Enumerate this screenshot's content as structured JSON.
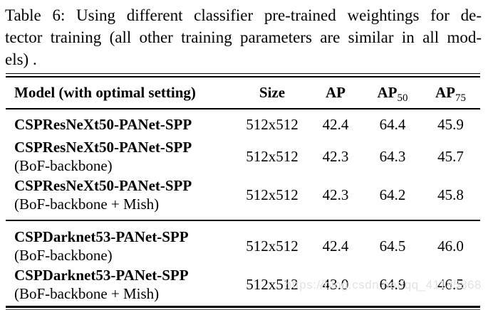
{
  "caption": {
    "lines": [
      "Table 6: Using different classifier pre-trained weightings for de-",
      "tector training (all other training parameters are similar in all mod-",
      "els) ."
    ]
  },
  "table": {
    "headers": {
      "model": "Model (with optimal setting)",
      "size": "Size",
      "ap": "AP",
      "ap50_base": "AP",
      "ap50_sub": "50",
      "ap75_base": "AP",
      "ap75_sub": "75"
    },
    "rows": [
      {
        "model": "CSPResNeXt50-PANet-SPP",
        "variant": "",
        "size": "512x512",
        "ap": "42.4",
        "ap50": "64.4",
        "ap75": "45.9"
      },
      {
        "model": "CSPResNeXt50-PANet-SPP",
        "variant": "(BoF-backbone)",
        "size": "512x512",
        "ap": "42.3",
        "ap50": "64.3",
        "ap75": "45.7"
      },
      {
        "model": "CSPResNeXt50-PANet-SPP",
        "variant": "(BoF-backbone + Mish)",
        "size": "512x512",
        "ap": "42.3",
        "ap50": "64.2",
        "ap75": "45.8"
      },
      {
        "model": "CSPDarknet53-PANet-SPP",
        "variant": "(BoF-backbone)",
        "size": "512x512",
        "ap": "42.4",
        "ap50": "64.5",
        "ap75": "46.0"
      },
      {
        "model": "CSPDarknet53-PANet-SPP",
        "variant": "(BoF-backbone + Mish)",
        "size": "512x512",
        "ap": "43.0",
        "ap50": "64.9",
        "ap75": "46.5"
      }
    ]
  },
  "watermark": {
    "text": "https://blog.csdn.net/qq_41185868"
  },
  "colors": {
    "text": "#000000",
    "background": "#ffffff",
    "rule": "#000000",
    "watermark": "#e2e2e2"
  }
}
